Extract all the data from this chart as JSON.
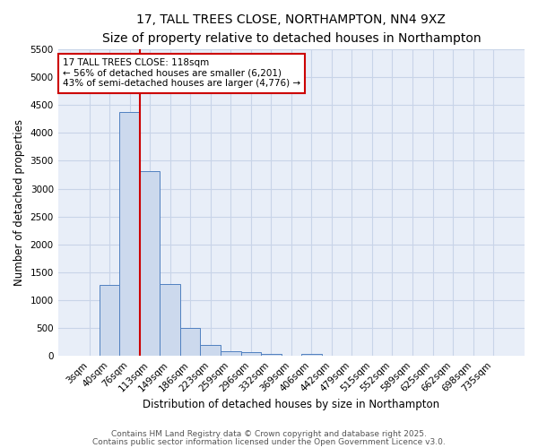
{
  "title1": "17, TALL TREES CLOSE, NORTHAMPTON, NN4 9XZ",
  "title2": "Size of property relative to detached houses in Northampton",
  "xlabel": "Distribution of detached houses by size in Northampton",
  "ylabel": "Number of detached properties",
  "bar_labels": [
    "3sqm",
    "40sqm",
    "76sqm",
    "113sqm",
    "149sqm",
    "186sqm",
    "223sqm",
    "259sqm",
    "296sqm",
    "332sqm",
    "369sqm",
    "406sqm",
    "442sqm",
    "479sqm",
    "515sqm",
    "552sqm",
    "589sqm",
    "625sqm",
    "662sqm",
    "698sqm",
    "735sqm"
  ],
  "bar_values": [
    0,
    1270,
    4370,
    3320,
    1290,
    500,
    200,
    90,
    60,
    30,
    0,
    40,
    0,
    0,
    0,
    0,
    0,
    0,
    0,
    0,
    0
  ],
  "bar_color": "#ccd9ed",
  "bar_edge_color": "#5080c0",
  "vline_x": 2.5,
  "vline_color": "#cc0000",
  "ylim": [
    0,
    5500
  ],
  "yticks": [
    0,
    500,
    1000,
    1500,
    2000,
    2500,
    3000,
    3500,
    4000,
    4500,
    5000,
    5500
  ],
  "annotation_text": "17 TALL TREES CLOSE: 118sqm\n← 56% of detached houses are smaller (6,201)\n43% of semi-detached houses are larger (4,776) →",
  "annotation_box_color": "#cc0000",
  "grid_color": "#c8d4e8",
  "bg_color": "#e8eef8",
  "footnote1": "Contains HM Land Registry data © Crown copyright and database right 2025.",
  "footnote2": "Contains public sector information licensed under the Open Government Licence v3.0.",
  "title1_fontsize": 10,
  "title2_fontsize": 8.5,
  "xlabel_fontsize": 8.5,
  "ylabel_fontsize": 8.5,
  "tick_fontsize": 7.5,
  "ann_fontsize": 7.5,
  "footnote_fontsize": 6.5
}
